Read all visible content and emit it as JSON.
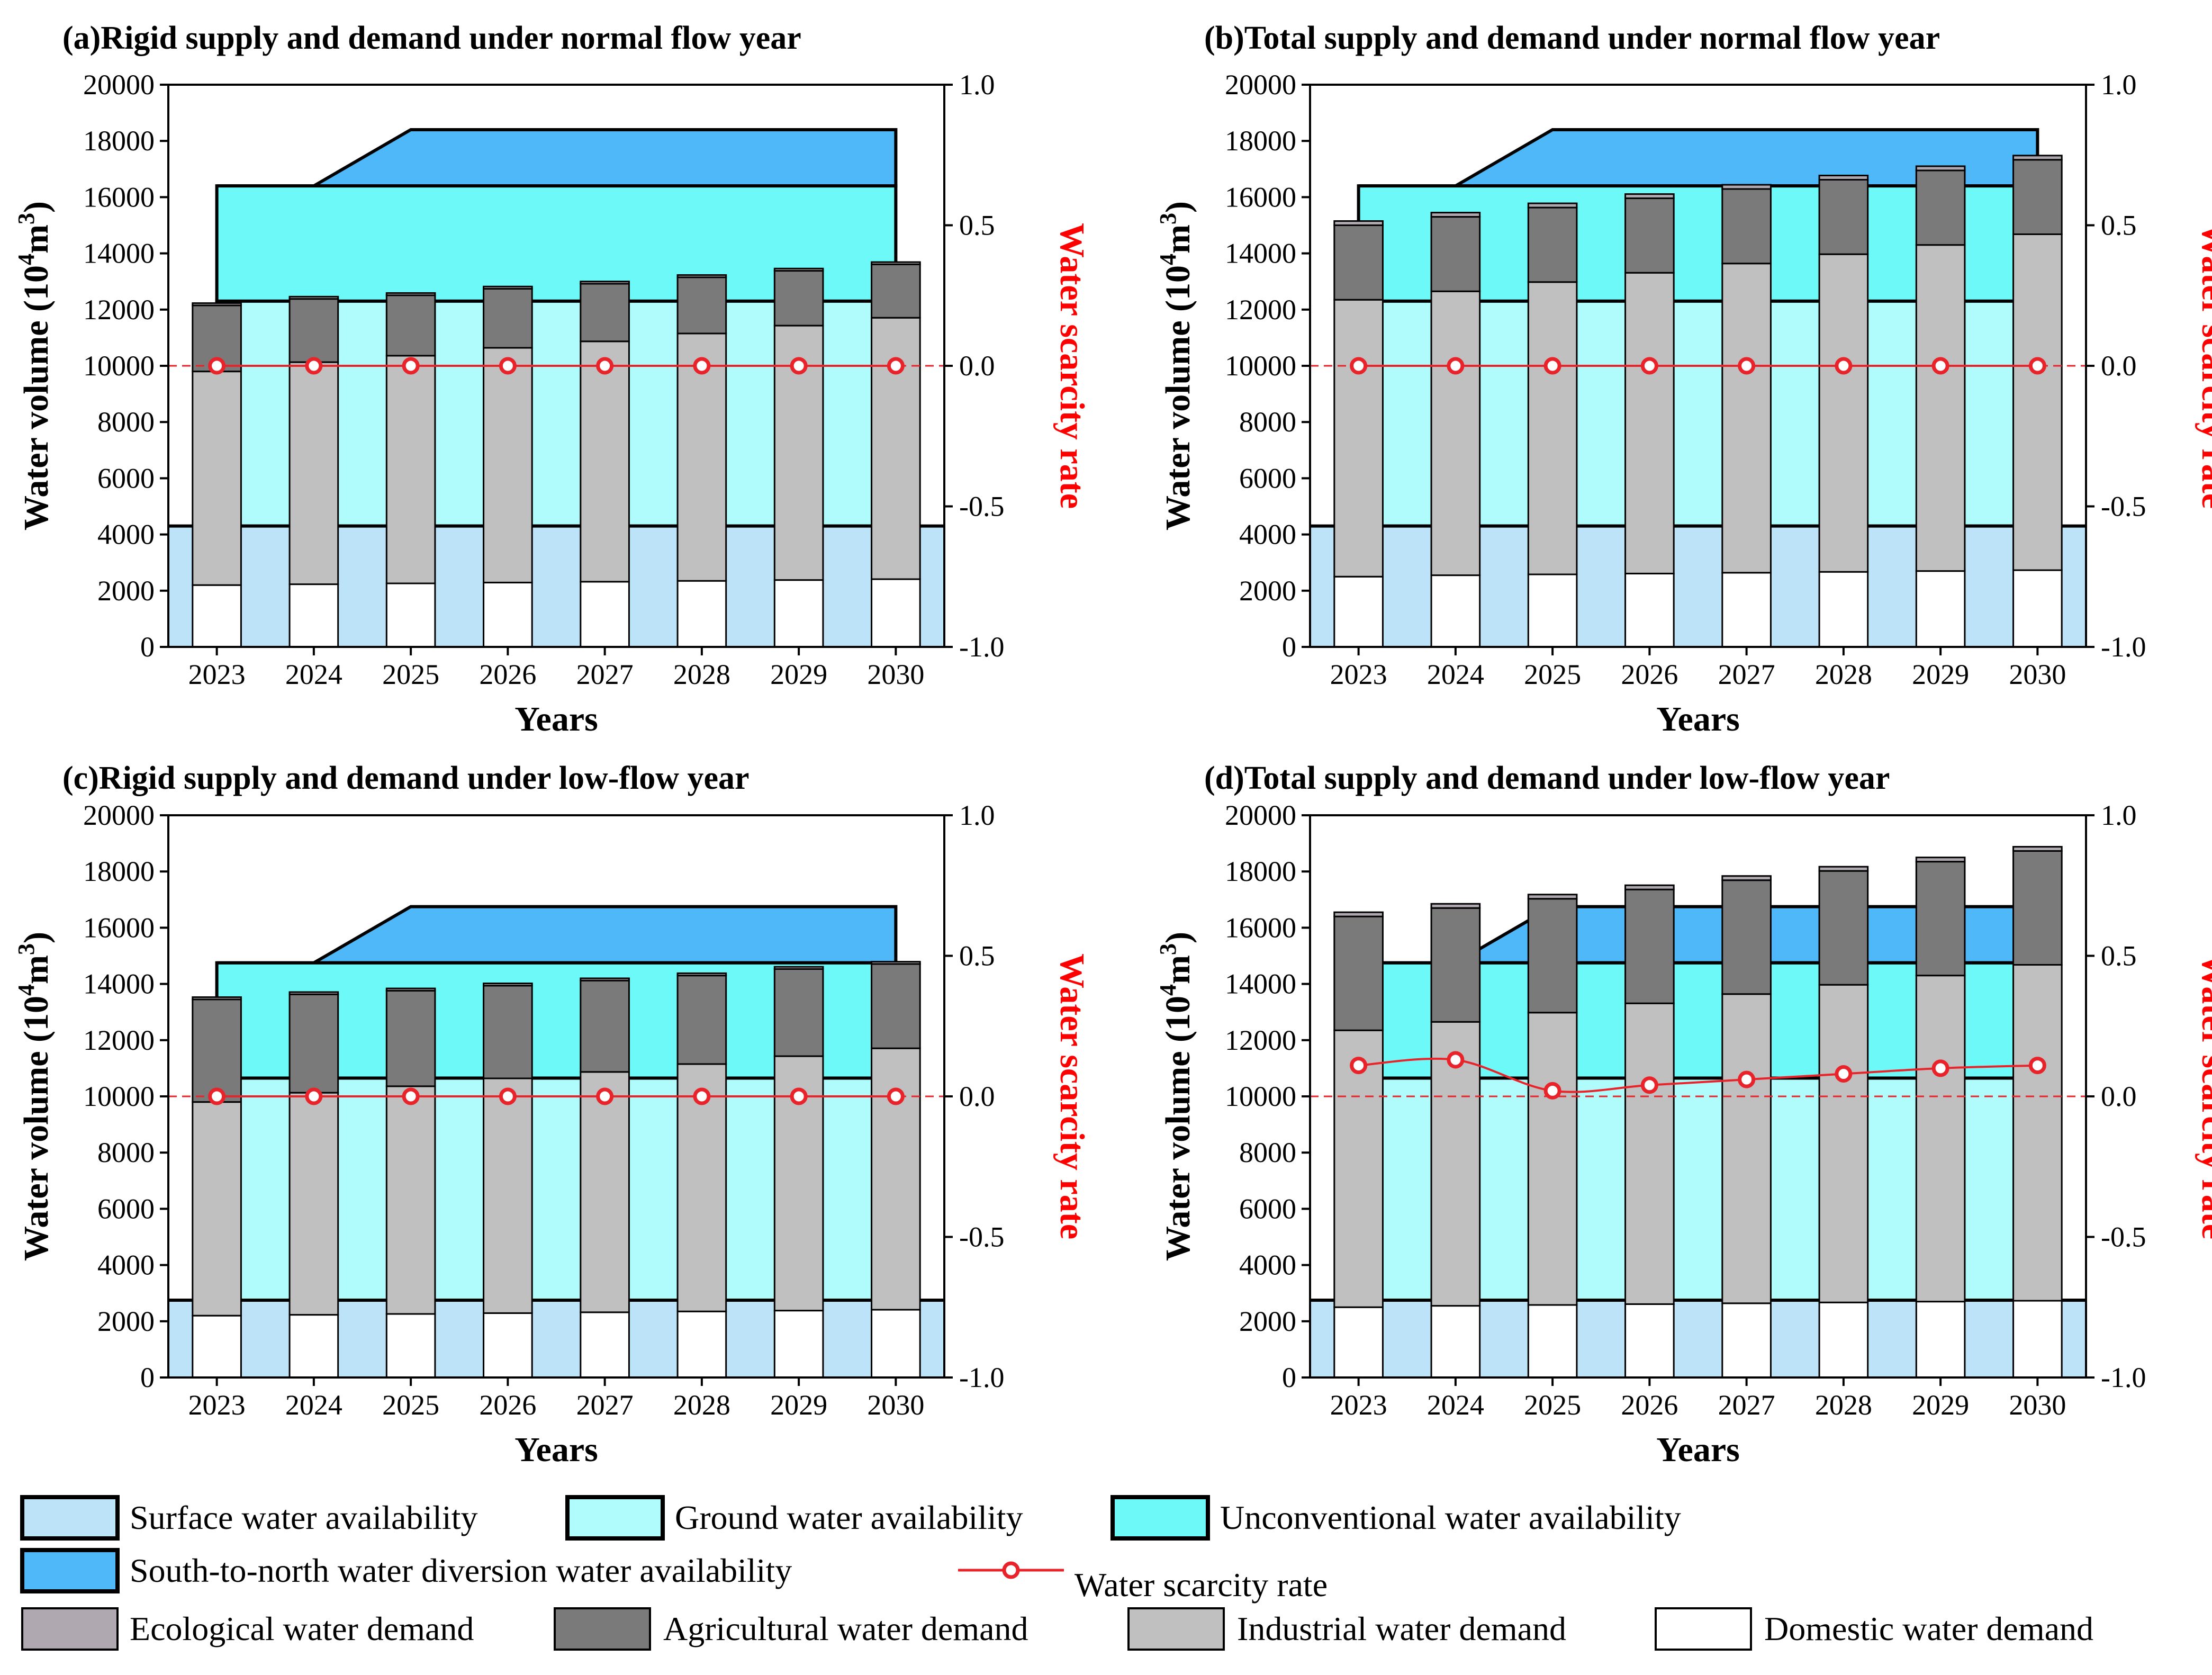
{
  "colors": {
    "surface": "#bde3f8",
    "ground": "#b0fcfc",
    "unconventional": "#6ef9f9",
    "diversion": "#4fb8f8",
    "ecological": "#b0a8b0",
    "agricultural": "#7a7a7a",
    "industrial": "#c0c0c0",
    "domestic": "#ffffff",
    "scarcity": "#e8232a"
  },
  "legend": {
    "surface": "Surface water availability",
    "ground": "Ground water availability",
    "unconventional": "Unconventional water availability",
    "diversion": "South-to-north water diversion water availability",
    "scarcity": "Water scarcity rate",
    "ecological": "Ecological water demand",
    "agricultural": "Agricultural water demand",
    "industrial": "Industrial water demand",
    "domestic": "Domestic water demand"
  },
  "chart_data": [
    {
      "id": "a",
      "type": "bar",
      "title": "(a)Rigid supply and demand under normal flow year",
      "xlabel": "Years",
      "ylabel_main": "Water volume (10",
      "ylabel_sup": "4",
      "ylabel_unit": "m",
      "ylabel_sup2": "3",
      "ylabel_close": ")",
      "y2label": "Water scarcity rate",
      "ylim": [
        0,
        20000
      ],
      "y2lim": [
        -1.0,
        1.0
      ],
      "yticks": [
        "0",
        "2000",
        "4000",
        "6000",
        "8000",
        "10000",
        "12000",
        "14000",
        "16000",
        "18000",
        "20000"
      ],
      "y2ticks": [
        "-1.0",
        "-0.5",
        "0.0",
        "0.5",
        "1.0"
      ],
      "categories": [
        "2023",
        "2024",
        "2025",
        "2026",
        "2027",
        "2028",
        "2029",
        "2030"
      ],
      "supply": {
        "surface": 4300,
        "ground": 12300,
        "unconventional": 16400,
        "diversion": [
          16400,
          16400,
          18400,
          18400,
          18400,
          18400,
          18400,
          18400
        ]
      },
      "demand": {
        "domestic": [
          2200,
          2230,
          2260,
          2290,
          2320,
          2350,
          2380,
          2410
        ],
        "industrial": [
          7600,
          7900,
          8100,
          8350,
          8550,
          8800,
          9050,
          9300
        ],
        "agricultural": [
          2350,
          2250,
          2150,
          2100,
          2050,
          2000,
          1950,
          1900
        ],
        "ecological": [
          80,
          80,
          80,
          80,
          80,
          80,
          80,
          80
        ]
      },
      "scarcity_rate": [
        0,
        0,
        0,
        0,
        0,
        0,
        0,
        0
      ]
    },
    {
      "id": "b",
      "type": "bar",
      "title": "(b)Total supply and demand under normal flow year",
      "xlabel": "Years",
      "ylabel_main": "Water volume (10",
      "ylabel_sup": "4",
      "ylabel_unit": "m",
      "ylabel_sup2": "3",
      "ylabel_close": ")",
      "y2label": "Water scarcity rate",
      "ylim": [
        0,
        20000
      ],
      "y2lim": [
        -1.0,
        1.0
      ],
      "yticks": [
        "0",
        "2000",
        "4000",
        "6000",
        "8000",
        "10000",
        "12000",
        "14000",
        "16000",
        "18000",
        "20000"
      ],
      "y2ticks": [
        "-1.0",
        "-0.5",
        "0.0",
        "0.5",
        "1.0"
      ],
      "categories": [
        "2023",
        "2024",
        "2025",
        "2026",
        "2027",
        "2028",
        "2029",
        "2030"
      ],
      "supply": {
        "surface": 4300,
        "ground": 12300,
        "unconventional": 16400,
        "diversion": [
          16400,
          16400,
          18400,
          18400,
          18400,
          18400,
          18400,
          18400
        ]
      },
      "demand": {
        "domestic": [
          2500,
          2550,
          2580,
          2610,
          2640,
          2670,
          2700,
          2730
        ],
        "industrial": [
          9850,
          10100,
          10400,
          10700,
          11000,
          11300,
          11600,
          11950
        ],
        "agricultural": [
          2650,
          2650,
          2650,
          2650,
          2650,
          2650,
          2650,
          2650
        ],
        "ecological": [
          150,
          150,
          150,
          150,
          150,
          150,
          150,
          150
        ]
      },
      "scarcity_rate": [
        0,
        0,
        0,
        0,
        0,
        0,
        0,
        0
      ]
    },
    {
      "id": "c",
      "type": "bar",
      "title": "(c)Rigid supply and demand under low-flow year",
      "xlabel": "Years",
      "ylabel_main": "Water volume (10",
      "ylabel_sup": "4",
      "ylabel_unit": "m",
      "ylabel_sup2": "3",
      "ylabel_close": ")",
      "y2label": "Water scarcity rate",
      "ylim": [
        0,
        20000
      ],
      "y2lim": [
        -1.0,
        1.0
      ],
      "yticks": [
        "0",
        "2000",
        "4000",
        "6000",
        "8000",
        "10000",
        "12000",
        "14000",
        "16000",
        "18000",
        "20000"
      ],
      "y2ticks": [
        "-1.0",
        "-0.5",
        "0.0",
        "0.5",
        "1.0"
      ],
      "categories": [
        "2023",
        "2024",
        "2025",
        "2026",
        "2027",
        "2028",
        "2029",
        "2030"
      ],
      "supply": {
        "surface": 2750,
        "ground": 10650,
        "unconventional": 14750,
        "diversion": [
          14750,
          14750,
          16750,
          16750,
          16750,
          16750,
          16750,
          16750
        ]
      },
      "demand": {
        "domestic": [
          2200,
          2230,
          2260,
          2290,
          2320,
          2350,
          2380,
          2410
        ],
        "industrial": [
          7600,
          7900,
          8100,
          8350,
          8550,
          8800,
          9050,
          9300
        ],
        "agricultural": [
          3650,
          3500,
          3400,
          3300,
          3250,
          3150,
          3100,
          3000
        ],
        "ecological": [
          80,
          80,
          80,
          80,
          80,
          80,
          80,
          80
        ]
      },
      "scarcity_rate": [
        0,
        0,
        0,
        0,
        0,
        0,
        0,
        0
      ]
    },
    {
      "id": "d",
      "type": "bar",
      "title": "(d)Total supply and demand under low-flow year",
      "xlabel": "Years",
      "ylabel_main": "Water volume (10",
      "ylabel_sup": "4",
      "ylabel_unit": "m",
      "ylabel_sup2": "3",
      "ylabel_close": ")",
      "y2label": "Water scarcity rate",
      "ylim": [
        0,
        20000
      ],
      "y2lim": [
        -1.0,
        1.0
      ],
      "yticks": [
        "0",
        "2000",
        "4000",
        "6000",
        "8000",
        "10000",
        "12000",
        "14000",
        "16000",
        "18000",
        "20000"
      ],
      "y2ticks": [
        "-1.0",
        "-0.5",
        "0.0",
        "0.5",
        "1.0"
      ],
      "categories": [
        "2023",
        "2024",
        "2025",
        "2026",
        "2027",
        "2028",
        "2029",
        "2030"
      ],
      "supply": {
        "surface": 2750,
        "ground": 10650,
        "unconventional": 14750,
        "diversion": [
          14750,
          14750,
          16750,
          16750,
          16750,
          16750,
          16750,
          16750
        ]
      },
      "demand": {
        "domestic": [
          2500,
          2550,
          2580,
          2610,
          2640,
          2670,
          2700,
          2730
        ],
        "industrial": [
          9850,
          10100,
          10400,
          10700,
          11000,
          11300,
          11600,
          11950
        ],
        "agricultural": [
          4050,
          4050,
          4050,
          4050,
          4050,
          4050,
          4050,
          4050
        ],
        "ecological": [
          150,
          150,
          150,
          150,
          150,
          150,
          150,
          150
        ]
      },
      "scarcity_rate": [
        0.11,
        0.13,
        0.02,
        0.04,
        0.06,
        0.08,
        0.1,
        0.11
      ]
    }
  ]
}
